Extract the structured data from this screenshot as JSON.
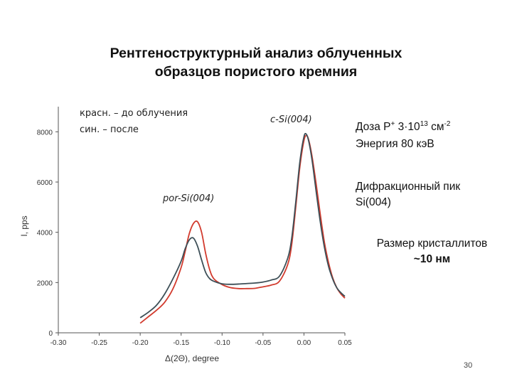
{
  "slide": {
    "title_line1": "Рентгеноструктурный анализ облученных",
    "title_line2": "образцов пористого кремния",
    "page_number": "30"
  },
  "annotations": {
    "legend_before": "красн. – до облучения",
    "legend_after": "син. – после",
    "peak_csi": "c-Si(004)",
    "peak_porsi": "por-Si(004)"
  },
  "info": {
    "dose_prefix": "Доза Р",
    "dose_sup": "+",
    "dose_mid": " 3·10",
    "dose_exp": "13",
    "dose_unit": " см",
    "dose_unit_exp": "-2",
    "energy": "Энергия 80 кэВ",
    "diff_line1": "Дифракционный пик",
    "diff_line2": "Si(004)",
    "size_line1": "Размер кристаллитов",
    "size_line2": "~10 нм"
  },
  "colors": {
    "before": "#d23b2e",
    "after": "#3d4f57",
    "axis": "#555555",
    "grid": "#bbbbbb"
  },
  "chart_data": {
    "type": "line",
    "title": "",
    "xlabel": "Δ(2Θ), degree",
    "ylabel": "I, pps",
    "xlim": [
      -0.3,
      0.05
    ],
    "ylim": [
      0,
      9000
    ],
    "xticks": [
      -0.3,
      -0.25,
      -0.2,
      -0.15,
      -0.1,
      -0.05,
      0.0,
      0.05
    ],
    "xtick_labels": [
      "-0.30",
      "-0.25",
      "-0.20",
      "-0.15",
      "-0.10",
      "-0.05",
      "0.00",
      "0.05"
    ],
    "yticks": [
      0,
      2000,
      4000,
      6000,
      8000
    ],
    "ytick_labels": [
      "0",
      "2000",
      "4000",
      "6000",
      "8000"
    ],
    "series": [
      {
        "name": "красн. – до облучения",
        "color_key": "before",
        "x": [
          -0.2,
          -0.19,
          -0.18,
          -0.17,
          -0.16,
          -0.15,
          -0.145,
          -0.14,
          -0.135,
          -0.13,
          -0.125,
          -0.12,
          -0.115,
          -0.11,
          -0.1,
          -0.09,
          -0.08,
          -0.07,
          -0.06,
          -0.05,
          -0.04,
          -0.03,
          -0.02,
          -0.015,
          -0.01,
          -0.005,
          0.0,
          0.003,
          0.006,
          0.01,
          0.015,
          0.02,
          0.025,
          0.03,
          0.035,
          0.04,
          0.045,
          0.05
        ],
        "y": [
          380,
          640,
          900,
          1220,
          1750,
          2600,
          3250,
          3950,
          4350,
          4420,
          4000,
          3150,
          2500,
          2150,
          1920,
          1800,
          1760,
          1760,
          1770,
          1830,
          1900,
          2050,
          2700,
          3500,
          5000,
          6600,
          7650,
          7850,
          7650,
          7000,
          5900,
          4700,
          3600,
          2800,
          2200,
          1800,
          1550,
          1380
        ]
      },
      {
        "name": "син. – после",
        "color_key": "after",
        "x": [
          -0.2,
          -0.19,
          -0.18,
          -0.17,
          -0.16,
          -0.15,
          -0.145,
          -0.14,
          -0.135,
          -0.13,
          -0.125,
          -0.12,
          -0.115,
          -0.11,
          -0.1,
          -0.09,
          -0.08,
          -0.07,
          -0.06,
          -0.05,
          -0.04,
          -0.03,
          -0.02,
          -0.015,
          -0.01,
          -0.005,
          0.0,
          0.003,
          0.006,
          0.01,
          0.015,
          0.02,
          0.025,
          0.03,
          0.035,
          0.04,
          0.045,
          0.05
        ],
        "y": [
          600,
          820,
          1100,
          1550,
          2150,
          2850,
          3350,
          3700,
          3770,
          3450,
          2900,
          2400,
          2150,
          2050,
          1950,
          1930,
          1940,
          1960,
          1980,
          2020,
          2100,
          2250,
          2950,
          3750,
          5200,
          6800,
          7800,
          7900,
          7600,
          6850,
          5600,
          4400,
          3400,
          2650,
          2150,
          1800,
          1600,
          1450
        ]
      }
    ]
  }
}
